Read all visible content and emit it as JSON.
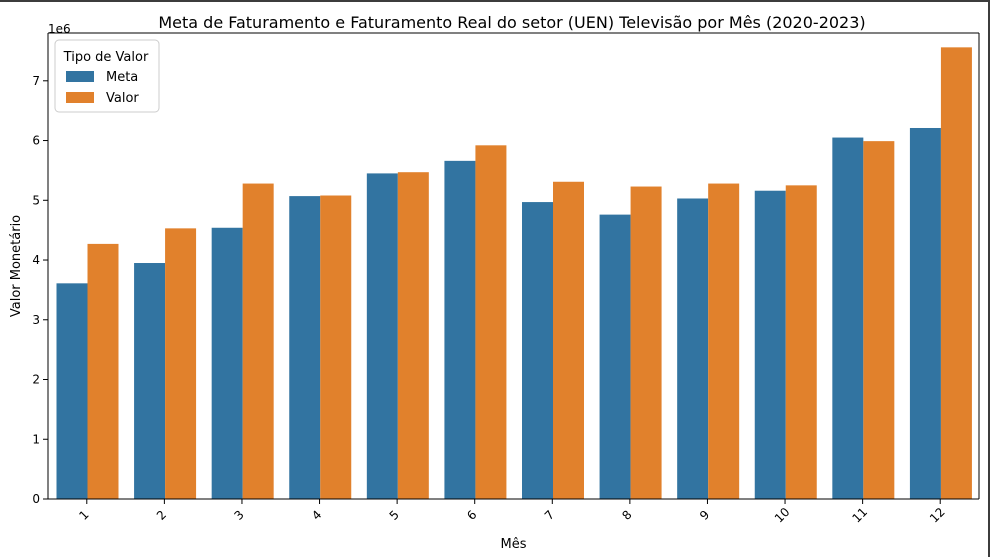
{
  "chart_data": {
    "type": "bar",
    "title": "Meta de Faturamento e Faturamento Real do setor (UEN) Televisão por Mês (2020-2023)",
    "xlabel": "Mês",
    "ylabel": "Valor Monetário",
    "y_scale_label": "1e6",
    "categories": [
      "1",
      "2",
      "3",
      "4",
      "5",
      "6",
      "7",
      "8",
      "9",
      "10",
      "11",
      "12"
    ],
    "yticks": [
      "0",
      "1",
      "2",
      "3",
      "4",
      "5",
      "6",
      "7"
    ],
    "ylim": [
      0,
      7.8
    ],
    "legend": {
      "title": "Tipo de Valor",
      "placement": "top-left"
    },
    "grid": false,
    "series": [
      {
        "name": "Meta",
        "color": "#3274a1",
        "values": [
          3.61,
          3.95,
          4.54,
          5.07,
          5.45,
          5.66,
          4.97,
          4.76,
          5.03,
          5.16,
          6.05,
          6.21
        ]
      },
      {
        "name": "Valor",
        "color": "#e1812c",
        "values": [
          4.27,
          4.53,
          5.28,
          5.08,
          5.47,
          5.92,
          5.31,
          5.23,
          5.28,
          5.25,
          5.99,
          7.56
        ]
      }
    ]
  }
}
